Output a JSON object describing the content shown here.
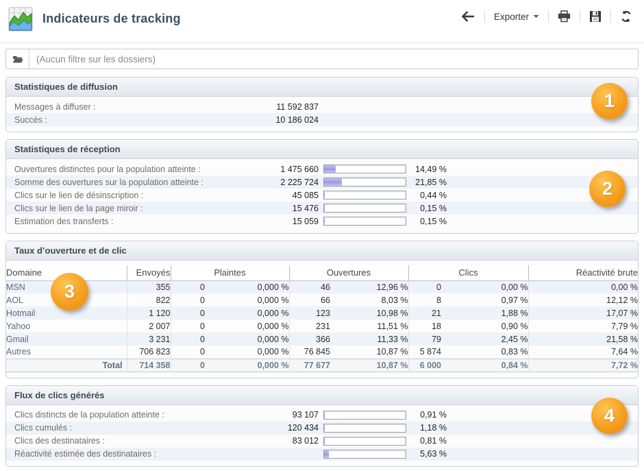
{
  "header": {
    "title": "Indicateurs de tracking",
    "toolbar": {
      "back_icon": "back-arrow",
      "export_label": "Exporter",
      "print_icon": "printer",
      "save_icon": "floppy-disk",
      "refresh_icon": "refresh-arrows"
    }
  },
  "filter": {
    "folder_icon": "open-folder",
    "text": "(Aucun filtre sur les dossiers)"
  },
  "colors": {
    "badge_orange": "#f59d1e",
    "bar_fill": "#9a9ae3",
    "row_stripe": "#eef2f9",
    "title_text": "#3c5064"
  },
  "sections": [
    {
      "title": "Statistiques de diffusion",
      "badge": "1",
      "rows": [
        {
          "label": "Messages à diffuser :",
          "value": "11 592 837"
        },
        {
          "label": "Succès :",
          "value": "10 186 024"
        }
      ]
    },
    {
      "title": "Statistiques de réception",
      "badge": "2",
      "rows": [
        {
          "label": "Ouvertures distinctes pour la population atteinte :",
          "value": "1 475 660",
          "pct": "14,49 %",
          "pct_num": 14.49
        },
        {
          "label": "Somme des ouvertures sur la population atteinte :",
          "value": "2 225 724",
          "pct": "21,85 %",
          "pct_num": 21.85
        },
        {
          "label": "Clics sur le lien de désinscription :",
          "value": "45 085",
          "pct": "0,44 %",
          "pct_num": 0.44
        },
        {
          "label": "Clics sur le lien de la page miroir :",
          "value": "15 476",
          "pct": "0,15 %",
          "pct_num": 0.15
        },
        {
          "label": "Estimation des transferts :",
          "value": "15 059",
          "pct": "0,15 %",
          "pct_num": 0.15
        }
      ]
    },
    {
      "title": "Taux d’ouverture et de clic",
      "badge": "3",
      "table": {
        "columns": [
          "Domaine",
          "Envoyés",
          "Plaintes",
          "Ouvertures",
          "Clics",
          "Réactivité brute"
        ],
        "rows": [
          [
            "MSN",
            "355",
            "0",
            "0,000 %",
            "46",
            "12,96 %",
            "0",
            "0,00 %",
            "0,00 %"
          ],
          [
            "AOL",
            "822",
            "0",
            "0,000 %",
            "66",
            "8,03 %",
            "8",
            "0,97 %",
            "12,12 %"
          ],
          [
            "Hotmail",
            "1 120",
            "0",
            "0,000 %",
            "123",
            "10,98 %",
            "21",
            "1,88 %",
            "17,07 %"
          ],
          [
            "Yahoo",
            "2 007",
            "0",
            "0,000 %",
            "231",
            "11,51 %",
            "18",
            "0,90 %",
            "7,79 %"
          ],
          [
            "Gmail",
            "3 231",
            "0",
            "0,000 %",
            "366",
            "11,33 %",
            "79",
            "2,45 %",
            "21,58 %"
          ],
          [
            "Autres",
            "706 823",
            "0",
            "0,000 %",
            "76 845",
            "10,87 %",
            "5 874",
            "0,83 %",
            "7,64 %"
          ]
        ],
        "total": [
          "Total",
          "714 358",
          "0",
          "0,000 %",
          "77 677",
          "10,87 %",
          "6 000",
          "0,84 %",
          "7,72 %"
        ]
      }
    },
    {
      "title": "Flux de clics générés",
      "badge": "4",
      "rows": [
        {
          "label": "Clics distincts de la population atteinte :",
          "value": "93 107",
          "pct": "0,91 %",
          "pct_num": 0.91
        },
        {
          "label": "Clics cumulés :",
          "value": "120 434",
          "pct": "1,18 %",
          "pct_num": 1.18
        },
        {
          "label": "Clics des destinataires :",
          "value": "83 012",
          "pct": "0,81 %",
          "pct_num": 0.81
        },
        {
          "label": "Réactivité estimée des destinataires :",
          "value": "",
          "pct": "5,63 %",
          "pct_num": 5.63
        }
      ]
    }
  ]
}
